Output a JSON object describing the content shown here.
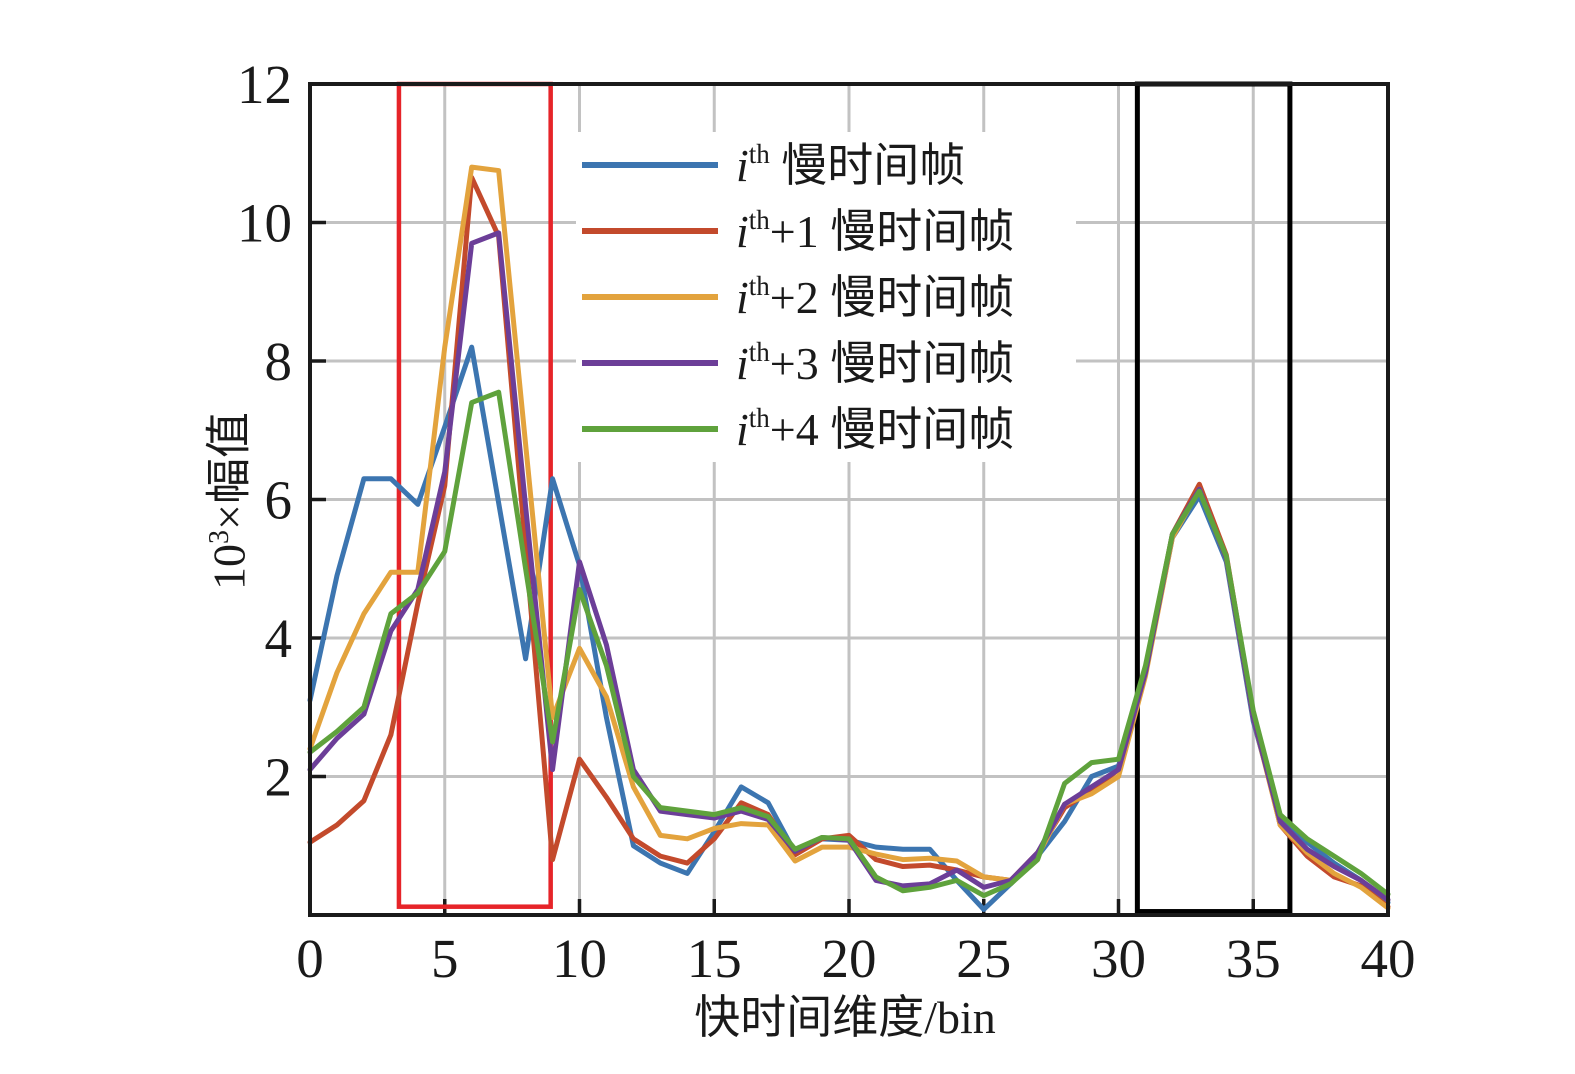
{
  "figure": {
    "x_axis_label": {
      "text": "快时间维度/bin"
    },
    "y_axis_label": {
      "prefix": "10",
      "sup": "3",
      "suffix": "×幅值"
    },
    "colors": {
      "axis": "#1a1a1a",
      "grid": "#c2c2c2",
      "background": "#ffffff"
    }
  },
  "chart_data": {
    "type": "line",
    "title": "",
    "xlabel": "快时间维度/bin",
    "ylabel": "10³×幅值",
    "xlim": [
      0,
      40
    ],
    "ylim": [
      0,
      12
    ],
    "x_ticks": [
      0,
      5,
      10,
      15,
      20,
      25,
      30,
      35,
      40
    ],
    "y_ticks": [
      2,
      4,
      6,
      8,
      10,
      12
    ],
    "grid": true,
    "legend_position": "upper-left-inside",
    "x": [
      0,
      1,
      2,
      3,
      4,
      5,
      6,
      7,
      8,
      9,
      10,
      11,
      12,
      13,
      14,
      15,
      16,
      17,
      18,
      19,
      20,
      21,
      22,
      23,
      24,
      25,
      26,
      27,
      28,
      29,
      30,
      31,
      32,
      33,
      34,
      35,
      36,
      37,
      38,
      39,
      40
    ],
    "series": [
      {
        "id": "ith",
        "color": "#3C75B0",
        "legend": {
          "italic": "i",
          "sup": "th",
          "rest": " 慢时间帧"
        },
        "values": [
          3.1,
          4.9,
          6.3,
          6.3,
          5.93,
          7.05,
          8.2,
          5.95,
          3.7,
          6.3,
          5.05,
          2.85,
          1.0,
          0.75,
          0.6,
          1.2,
          1.85,
          1.62,
          0.9,
          1.1,
          1.08,
          0.98,
          0.95,
          0.95,
          0.5,
          0.08,
          0.45,
          0.85,
          1.35,
          2.0,
          2.15,
          3.5,
          5.45,
          6.05,
          5.1,
          2.8,
          1.4,
          1.05,
          0.75,
          0.5,
          0.18
        ]
      },
      {
        "id": "ith1",
        "color": "#C34A2C",
        "legend": {
          "italic": "i",
          "sup": "th",
          "rest": "+1 慢时间帧"
        },
        "values": [
          1.05,
          1.3,
          1.65,
          2.6,
          4.5,
          6.2,
          10.65,
          9.8,
          5.3,
          0.8,
          2.25,
          1.7,
          1.1,
          0.85,
          0.75,
          1.1,
          1.62,
          1.45,
          0.87,
          1.1,
          1.15,
          0.8,
          0.7,
          0.72,
          0.65,
          0.55,
          0.5,
          0.9,
          1.55,
          1.8,
          2.1,
          3.55,
          5.5,
          6.22,
          5.2,
          2.9,
          1.3,
          0.85,
          0.55,
          0.42,
          0.12
        ]
      },
      {
        "id": "ith2",
        "color": "#E3A33D",
        "legend": {
          "italic": "i",
          "sup": "th",
          "rest": "+2 慢时间帧"
        },
        "values": [
          2.4,
          3.5,
          4.35,
          4.95,
          4.95,
          8.2,
          10.8,
          10.75,
          6.8,
          2.85,
          3.85,
          3.15,
          1.85,
          1.15,
          1.1,
          1.25,
          1.32,
          1.3,
          0.78,
          0.98,
          0.98,
          0.88,
          0.8,
          0.82,
          0.78,
          0.55,
          0.5,
          0.85,
          1.6,
          1.75,
          2.0,
          3.45,
          5.45,
          6.15,
          5.15,
          2.85,
          1.3,
          0.9,
          0.6,
          0.4,
          0.1
        ]
      },
      {
        "id": "ith3",
        "color": "#6C3E98",
        "legend": {
          "italic": "i",
          "sup": "th",
          "rest": "+3 慢时间帧"
        },
        "values": [
          2.1,
          2.55,
          2.9,
          4.1,
          4.7,
          6.4,
          9.7,
          9.85,
          5.9,
          2.1,
          5.1,
          3.9,
          2.1,
          1.5,
          1.45,
          1.4,
          1.5,
          1.38,
          0.92,
          1.12,
          1.08,
          0.5,
          0.42,
          0.45,
          0.65,
          0.4,
          0.5,
          0.9,
          1.6,
          1.85,
          2.1,
          3.5,
          5.5,
          6.15,
          5.15,
          2.85,
          1.35,
          0.95,
          0.7,
          0.5,
          0.22
        ]
      },
      {
        "id": "ith4",
        "color": "#5FA23C",
        "legend": {
          "italic": "i",
          "sup": "th",
          "rest": "+4 慢时间帧"
        },
        "values": [
          2.35,
          2.65,
          3.0,
          4.35,
          4.65,
          5.25,
          7.4,
          7.55,
          5.0,
          2.5,
          4.7,
          3.6,
          2.0,
          1.55,
          1.5,
          1.45,
          1.55,
          1.42,
          0.95,
          1.12,
          1.1,
          0.55,
          0.35,
          0.4,
          0.5,
          0.28,
          0.45,
          0.8,
          1.9,
          2.2,
          2.25,
          3.6,
          5.5,
          6.12,
          5.18,
          2.95,
          1.45,
          1.1,
          0.85,
          0.6,
          0.3
        ]
      }
    ],
    "highlight_boxes": [
      {
        "id": "red-box",
        "x0": 3.3,
        "x1": 8.93,
        "y0": 0.12,
        "y1": 12,
        "color": "#E62429",
        "stroke_width": 4.5
      },
      {
        "id": "black-box",
        "x0": 30.7,
        "x1": 36.36,
        "y0": 0.05,
        "y1": 12,
        "color": "#000000",
        "stroke_width": 5
      }
    ]
  }
}
